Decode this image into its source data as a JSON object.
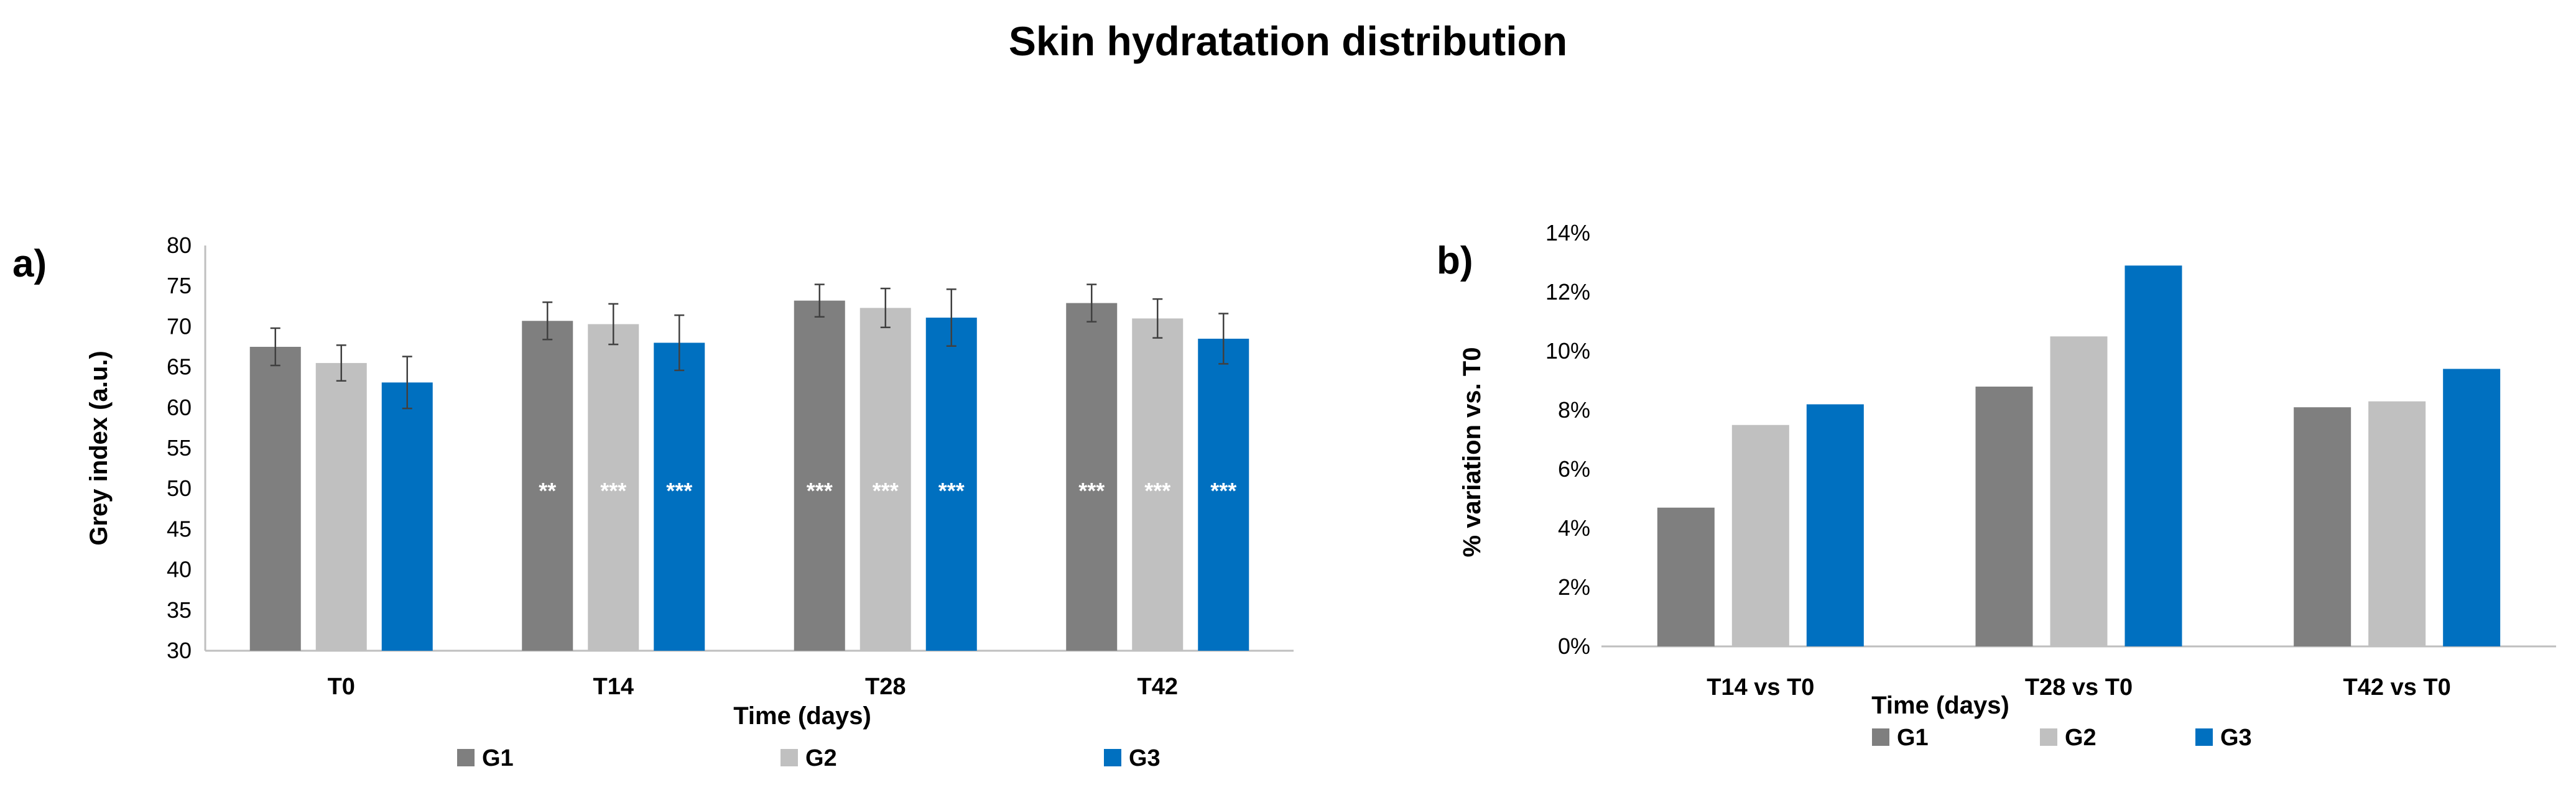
{
  "title": "Skin hydratation distribution",
  "colors": {
    "G1": "#7f7f7f",
    "G2": "#c0c0c0",
    "G3": "#0070c0",
    "axis": "#bfbfbf",
    "error": "#404040"
  },
  "chart_data": [
    {
      "panel": "a)",
      "type": "bar",
      "categories": [
        "T0",
        "T14",
        "T28",
        "T42"
      ],
      "series": [
        {
          "name": "G1",
          "values": [
            67.5,
            70.7,
            73.2,
            72.9
          ],
          "errors": [
            2.3,
            2.3,
            2.0,
            2.3
          ]
        },
        {
          "name": "G2",
          "values": [
            65.5,
            70.3,
            72.3,
            71.0
          ],
          "errors": [
            2.2,
            2.5,
            2.4,
            2.4
          ]
        },
        {
          "name": "G3",
          "values": [
            63.1,
            68.0,
            71.1,
            68.5
          ],
          "errors": [
            3.2,
            3.4,
            3.5,
            3.1
          ]
        }
      ],
      "significance": [
        [
          "",
          "**",
          "***",
          "***"
        ],
        [
          "",
          "***",
          "***",
          "***"
        ],
        [
          "",
          "***",
          "***",
          "***"
        ]
      ],
      "significance_y": 50,
      "xlabel": "Time (days)",
      "ylabel": "Grey index (a.u.)",
      "ylim": [
        30,
        80
      ],
      "yticks": [
        30,
        35,
        40,
        45,
        50,
        55,
        60,
        65,
        70,
        75,
        80
      ],
      "legend": [
        "G1",
        "G2",
        "G3"
      ],
      "legend_position": "bottom",
      "grid": false
    },
    {
      "panel": "b)",
      "type": "bar",
      "categories": [
        "T14 vs T0",
        "T28 vs T0",
        "T42 vs T0"
      ],
      "series": [
        {
          "name": "G1",
          "values": [
            4.7,
            8.8,
            8.1
          ]
        },
        {
          "name": "G2",
          "values": [
            7.5,
            10.5,
            8.3
          ]
        },
        {
          "name": "G3",
          "values": [
            8.2,
            12.9,
            9.4
          ]
        }
      ],
      "xlabel": "Time (days)",
      "ylabel": "% variation vs. T0",
      "ylim": [
        0,
        14
      ],
      "yticks": [
        "0%",
        "2%",
        "4%",
        "6%",
        "8%",
        "10%",
        "12%",
        "14%"
      ],
      "legend": [
        "G1",
        "G2",
        "G3"
      ],
      "legend_position": "bottom",
      "grid": false
    }
  ]
}
